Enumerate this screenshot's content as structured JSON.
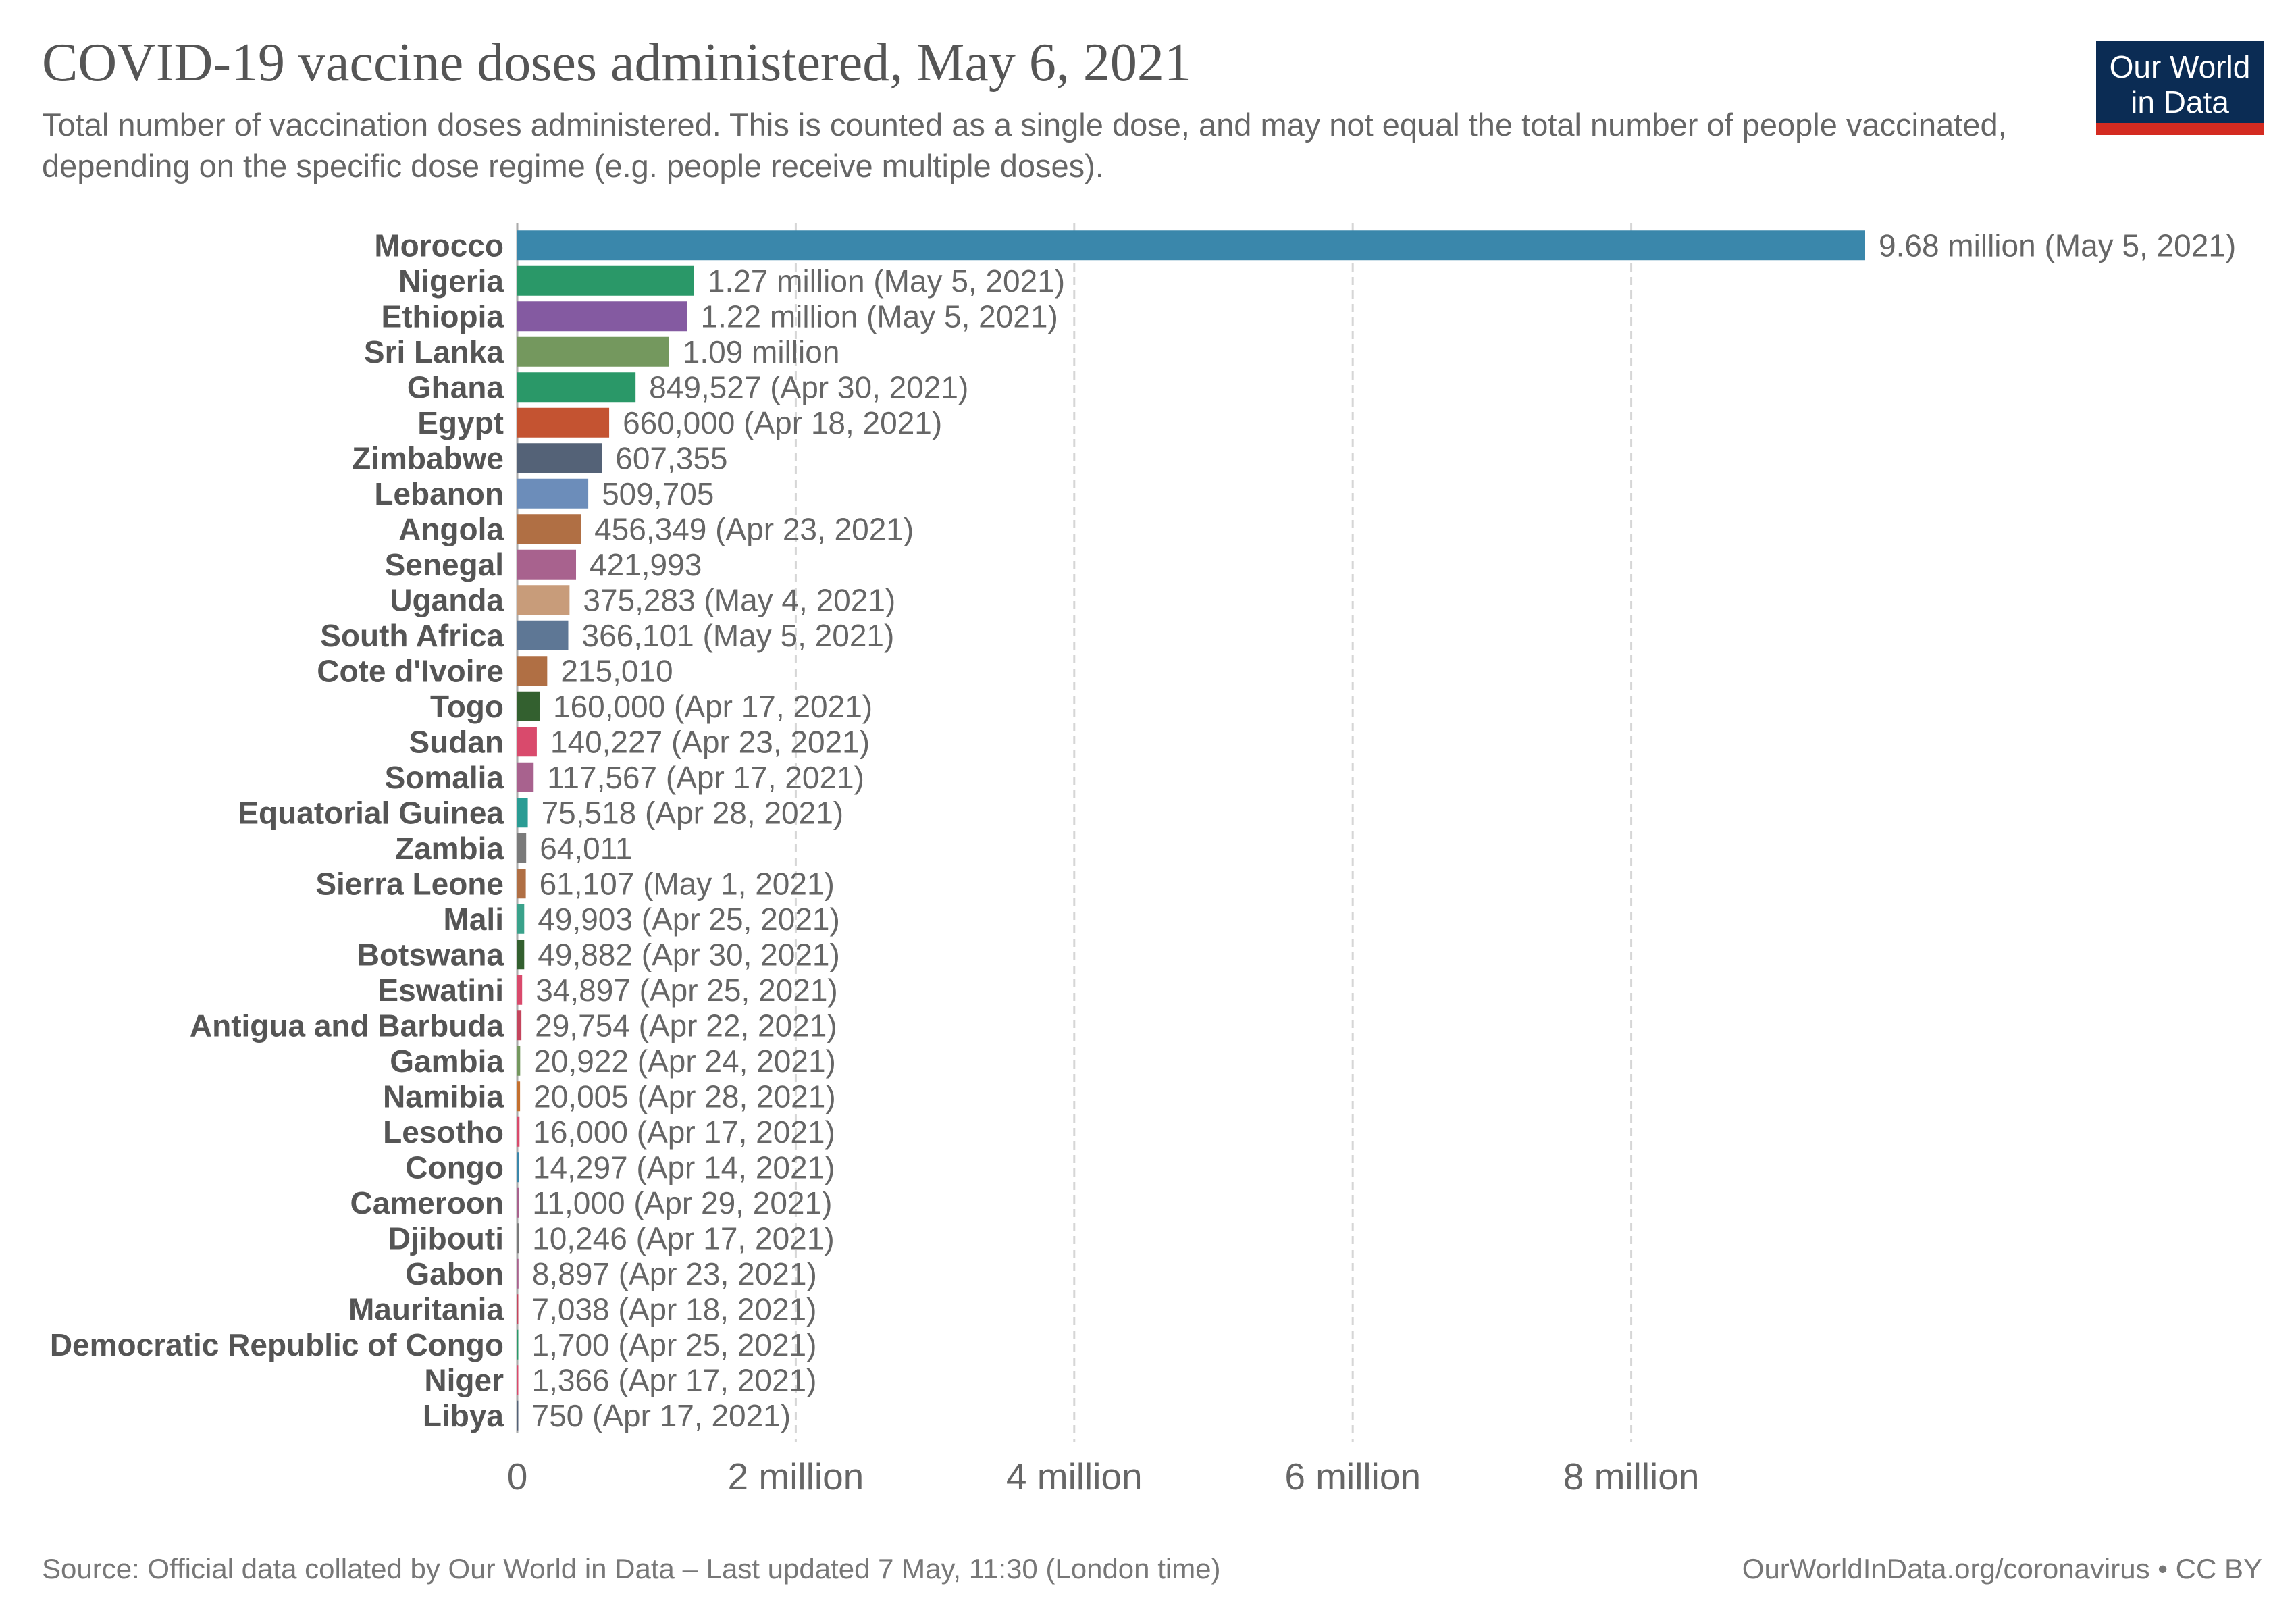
{
  "header": {
    "title": "COVID-19 vaccine doses administered, May 6, 2021",
    "subtitle": "Total number of vaccination doses administered. This is counted as a single dose, and may not equal the total number of people vaccinated, depending on the specific dose regime (e.g. people receive multiple doses).",
    "logo_line1": "Our World",
    "logo_line2": "in Data"
  },
  "footer": {
    "source": "Source: Official data collated by Our World in Data – Last updated 7 May, 11:30 (London time)",
    "license": "OurWorldInData.org/coronavirus • CC BY"
  },
  "chart_data": {
    "type": "bar",
    "orientation": "horizontal",
    "title": "COVID-19 vaccine doses administered, May 6, 2021",
    "xlabel": "",
    "ylabel": "",
    "xlim": [
      0,
      9680000
    ],
    "grid": "vertical dashed",
    "legend": "none",
    "x_ticks": [
      {
        "value": 0,
        "label": "0"
      },
      {
        "value": 2000000,
        "label": "2 million"
      },
      {
        "value": 4000000,
        "label": "4 million"
      },
      {
        "value": 6000000,
        "label": "6 million"
      },
      {
        "value": 8000000,
        "label": "8 million"
      }
    ],
    "bars": [
      {
        "category": "Morocco",
        "value": 9680000,
        "label": "9.68 million (May 5, 2021)",
        "color": "#3a87ab"
      },
      {
        "category": "Nigeria",
        "value": 1270000,
        "label": "1.27 million (May 5, 2021)",
        "color": "#2a9868"
      },
      {
        "category": "Ethiopia",
        "value": 1220000,
        "label": "1.22 million (May 5, 2021)",
        "color": "#845aa1"
      },
      {
        "category": "Sri Lanka",
        "value": 1090000,
        "label": "1.09 million",
        "color": "#74985e"
      },
      {
        "category": "Ghana",
        "value": 849527,
        "label": "849,527 (Apr 30, 2021)",
        "color": "#2a9868"
      },
      {
        "category": "Egypt",
        "value": 660000,
        "label": "660,000 (Apr 18, 2021)",
        "color": "#c45331"
      },
      {
        "category": "Zimbabwe",
        "value": 607355,
        "label": "607,355",
        "color": "#546277"
      },
      {
        "category": "Lebanon",
        "value": 509705,
        "label": "509,705",
        "color": "#6c8dba"
      },
      {
        "category": "Angola",
        "value": 456349,
        "label": "456,349 (Apr 23, 2021)",
        "color": "#b06f44"
      },
      {
        "category": "Senegal",
        "value": 421993,
        "label": "421,993",
        "color": "#a8628e"
      },
      {
        "category": "Uganda",
        "value": 375283,
        "label": "375,283 (May 4, 2021)",
        "color": "#c89c7a"
      },
      {
        "category": "South Africa",
        "value": 366101,
        "label": "366,101 (May 5, 2021)",
        "color": "#5e7795"
      },
      {
        "category": "Cote d'Ivoire",
        "value": 215010,
        "label": "215,010",
        "color": "#b06f44"
      },
      {
        "category": "Togo",
        "value": 160000,
        "label": "160,000 (Apr 17, 2021)",
        "color": "#33602f"
      },
      {
        "category": "Sudan",
        "value": 140227,
        "label": "140,227 (Apr 23, 2021)",
        "color": "#d94a6c"
      },
      {
        "category": "Somalia",
        "value": 117567,
        "label": "117,567 (Apr 17, 2021)",
        "color": "#a8628e"
      },
      {
        "category": "Equatorial Guinea",
        "value": 75518,
        "label": "75,518 (Apr 28, 2021)",
        "color": "#2a9c94"
      },
      {
        "category": "Zambia",
        "value": 64011,
        "label": "64,011",
        "color": "#7a7a7a"
      },
      {
        "category": "Sierra Leone",
        "value": 61107,
        "label": "61,107 (May 1, 2021)",
        "color": "#b06f44"
      },
      {
        "category": "Mali",
        "value": 49903,
        "label": "49,903 (Apr 25, 2021)",
        "color": "#3aa28b"
      },
      {
        "category": "Botswana",
        "value": 49882,
        "label": "49,882 (Apr 30, 2021)",
        "color": "#33602f"
      },
      {
        "category": "Eswatini",
        "value": 34897,
        "label": "34,897 (Apr 25, 2021)",
        "color": "#d94a6c"
      },
      {
        "category": "Antigua and Barbuda",
        "value": 29754,
        "label": "29,754 (Apr 22, 2021)",
        "color": "#c4455d"
      },
      {
        "category": "Gambia",
        "value": 20922,
        "label": "20,922 (Apr 24, 2021)",
        "color": "#74985e"
      },
      {
        "category": "Namibia",
        "value": 20005,
        "label": "20,005 (Apr 28, 2021)",
        "color": "#c4702e"
      },
      {
        "category": "Lesotho",
        "value": 16000,
        "label": "16,000 (Apr 17, 2021)",
        "color": "#d94a6c"
      },
      {
        "category": "Congo",
        "value": 14297,
        "label": "14,297 (Apr 14, 2021)",
        "color": "#3a87ab"
      },
      {
        "category": "Cameroon",
        "value": 11000,
        "label": "11,000 (Apr 29, 2021)",
        "color": "#a8628e"
      },
      {
        "category": "Djibouti",
        "value": 10246,
        "label": "10,246 (Apr 17, 2021)",
        "color": "#7a7a7a"
      },
      {
        "category": "Gabon",
        "value": 8897,
        "label": "8,897 (Apr 23, 2021)",
        "color": "#a8628e"
      },
      {
        "category": "Mauritania",
        "value": 7038,
        "label": "7,038 (Apr 18, 2021)",
        "color": "#c4455d"
      },
      {
        "category": "Democratic Republic of Congo",
        "value": 1700,
        "label": "1,700 (Apr 25, 2021)",
        "color": "#2a9868"
      },
      {
        "category": "Niger",
        "value": 1366,
        "label": "1,366 (Apr 17, 2021)",
        "color": "#d94a6c"
      },
      {
        "category": "Libya",
        "value": 750,
        "label": "750 (Apr 17, 2021)",
        "color": "#546277"
      }
    ]
  }
}
